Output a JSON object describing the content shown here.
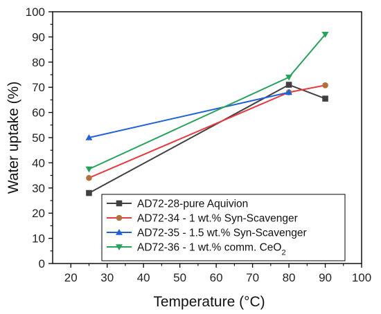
{
  "chart_data": {
    "type": "line",
    "title": "",
    "xlabel": "Temperature (°C)",
    "ylabel": "Water uptake (%)",
    "xlim": [
      15,
      100
    ],
    "ylim": [
      0,
      100
    ],
    "xticks": [
      20,
      30,
      40,
      50,
      60,
      70,
      80,
      90,
      100
    ],
    "yticks": [
      0,
      10,
      20,
      30,
      40,
      50,
      60,
      70,
      80,
      90,
      100
    ],
    "grid": false,
    "legend_position": "bottom-right",
    "series": [
      {
        "name": "AD72-28-pure Aquivion",
        "color": "#404040",
        "marker": "square",
        "x": [
          25,
          80,
          90
        ],
        "y": [
          28,
          71,
          65.5
        ]
      },
      {
        "name": "AD72-34 - 1 wt.% Syn-Scavenger",
        "color": "#e8393f",
        "marker_color": "#b3703a",
        "marker": "circle",
        "x": [
          25,
          80,
          90
        ],
        "y": [
          34,
          68,
          70.8
        ]
      },
      {
        "name": "AD72-35 - 1.5 wt.% Syn-Scavenger",
        "color": "#2160d6",
        "marker": "triangle-up",
        "x": [
          25,
          80
        ],
        "y": [
          50,
          68
        ]
      },
      {
        "name": "AD72-36 - 1 wt.% comm. CeO",
        "name_subscript": "2",
        "color": "#26a35a",
        "marker": "triangle-down",
        "x": [
          25,
          80,
          90
        ],
        "y": [
          37.5,
          74,
          91
        ]
      }
    ]
  }
}
